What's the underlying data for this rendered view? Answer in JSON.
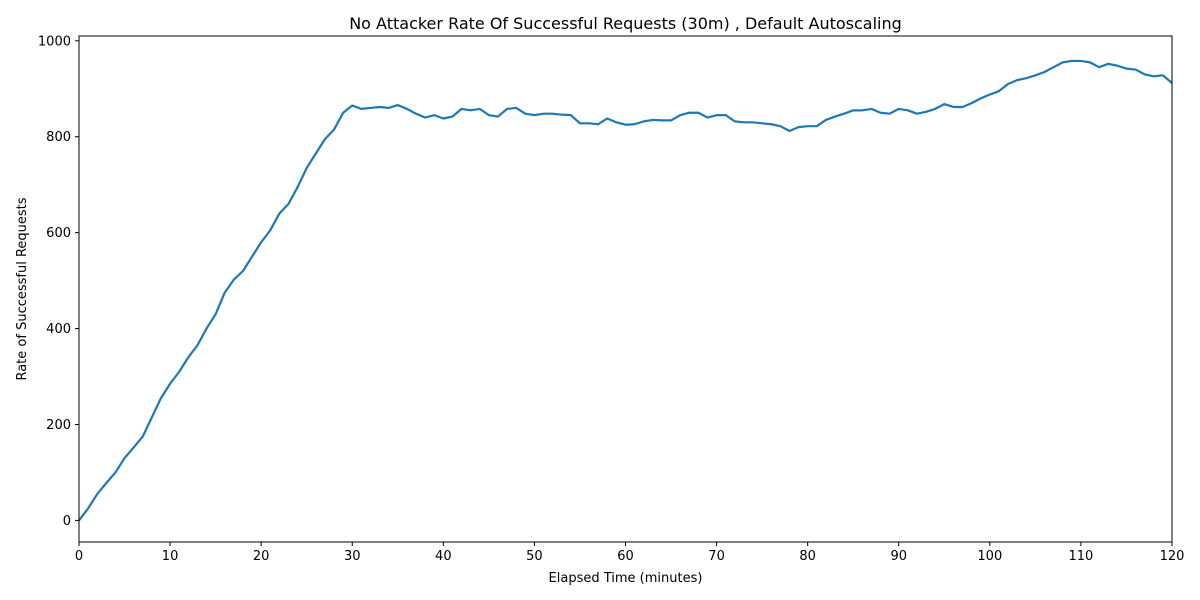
{
  "chart_data": {
    "type": "line",
    "title": "No Attacker Rate Of Successful Requests (30m) , Default Autoscaling",
    "xlabel": "Elapsed Time (minutes)",
    "ylabel": "Rate of Successful Requests",
    "xlim": [
      0,
      120
    ],
    "ylim": [
      -45,
      1010
    ],
    "xticks": [
      0,
      10,
      20,
      30,
      40,
      50,
      60,
      70,
      80,
      90,
      100,
      110,
      120
    ],
    "yticks": [
      0,
      200,
      400,
      600,
      800,
      1000
    ],
    "grid": false,
    "legend": "none",
    "line_color": "#1f77b4",
    "series": [
      {
        "x": [
          0,
          1,
          2,
          3,
          4,
          5,
          6,
          7,
          8,
          9,
          10,
          11,
          12,
          13,
          14,
          15,
          16,
          17,
          18,
          19,
          20,
          21,
          22,
          23,
          24,
          25,
          26,
          27,
          28,
          29,
          30,
          31,
          32,
          33,
          34,
          35,
          36,
          37,
          38,
          39,
          40,
          41,
          42,
          43,
          44,
          45,
          46,
          47,
          48,
          49,
          50,
          51,
          52,
          53,
          54,
          55,
          56,
          57,
          58,
          59,
          60,
          61,
          62,
          63,
          64,
          65,
          66,
          67,
          68,
          69,
          70,
          71,
          72,
          73,
          74,
          75,
          76,
          77,
          78,
          79,
          80,
          81,
          82,
          83,
          84,
          85,
          86,
          87,
          88,
          89,
          90,
          91,
          92,
          93,
          94,
          95,
          96,
          97,
          98,
          99,
          100,
          101,
          102,
          103,
          104,
          105,
          106,
          107,
          108,
          109,
          110,
          111,
          112,
          113,
          114,
          115,
          116,
          117,
          118,
          119,
          120
        ],
        "y": [
          0,
          25,
          55,
          78,
          100,
          130,
          152,
          175,
          215,
          255,
          285,
          310,
          340,
          365,
          400,
          430,
          475,
          502,
          520,
          550,
          580,
          605,
          640,
          660,
          695,
          735,
          765,
          795,
          815,
          850,
          865,
          858,
          860,
          862,
          860,
          866,
          858,
          848,
          840,
          845,
          838,
          842,
          858,
          855,
          858,
          845,
          842,
          858,
          860,
          848,
          845,
          848,
          848,
          846,
          845,
          828,
          828,
          826,
          838,
          830,
          825,
          826,
          832,
          835,
          834,
          834,
          845,
          850,
          850,
          840,
          845,
          845,
          832,
          830,
          830,
          828,
          826,
          822,
          812,
          820,
          822,
          822,
          835,
          842,
          848,
          855,
          855,
          858,
          850,
          848,
          858,
          855,
          848,
          852,
          858,
          868,
          862,
          862,
          870,
          880,
          888,
          895,
          910,
          918,
          922,
          928,
          935,
          945,
          955,
          958,
          958,
          955,
          945,
          952,
          948,
          942,
          940,
          930,
          926,
          928,
          912
        ]
      }
    ]
  }
}
